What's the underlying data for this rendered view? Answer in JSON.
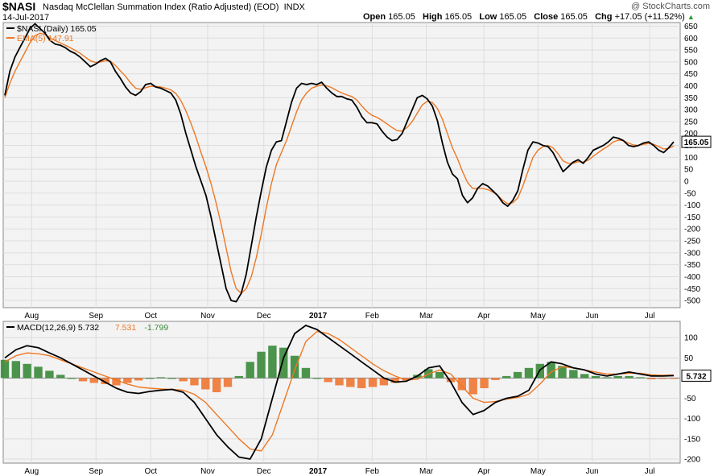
{
  "header": {
    "symbol": "$NASI",
    "description": "Nasdaq McClellan Summation Index (Ratio Adjusted) (EOD)",
    "exchange": "INDX",
    "date": "14-Jul-2017",
    "brand": "@ StockCharts.com",
    "ohlc": {
      "open_label": "Open",
      "open": "165.05",
      "high_label": "High",
      "high": "165.05",
      "low_label": "Low",
      "low": "165.05",
      "close_label": "Close",
      "close": "165.05",
      "chg_label": "Chg",
      "chg": "+17.05 (+11.52%)"
    }
  },
  "colors": {
    "price": "#000000",
    "ema": "#ee7722",
    "price_red": "#dd0000",
    "hist_pos": "#3a8a3a",
    "hist_neg": "#ee7733",
    "grid": "#dddddd",
    "panel_bg": "#f3f3f3"
  },
  "chart_data": [
    {
      "type": "line",
      "legend": [
        {
          "name": "$NASI (Daily) 165.05",
          "color": "#000000"
        },
        {
          "name": "EMA(5) 147.91",
          "color": "#ee7722"
        }
      ],
      "last_value_label": "165.05",
      "ylim": [
        -530,
        665
      ],
      "yticks": [
        650,
        600,
        550,
        500,
        450,
        400,
        350,
        300,
        250,
        200,
        150,
        100,
        50,
        0,
        -50,
        -100,
        -150,
        -200,
        -250,
        -300,
        -350,
        -400,
        -450,
        -500
      ],
      "xticks": [
        "Aug",
        "Sep",
        "Oct",
        "Nov",
        "Dec",
        "2017",
        "Feb",
        "Mar",
        "Apr",
        "May",
        "Jun",
        "Jul"
      ],
      "series": [
        {
          "name": "$NASI",
          "values": [
            360,
            460,
            520,
            560,
            600,
            640,
            660,
            640,
            620,
            590,
            575,
            570,
            560,
            545,
            535,
            520,
            500,
            480,
            490,
            505,
            515,
            500,
            460,
            430,
            395,
            370,
            360,
            375,
            405,
            410,
            395,
            390,
            380,
            370,
            340,
            280,
            200,
            130,
            60,
            0,
            -60,
            -150,
            -250,
            -350,
            -450,
            -500,
            -505,
            -470,
            -390,
            -270,
            -150,
            -40,
            60,
            130,
            165,
            170,
            250,
            330,
            390,
            410,
            405,
            410,
            405,
            415,
            390,
            370,
            355,
            355,
            345,
            340,
            310,
            270,
            245,
            245,
            240,
            210,
            185,
            170,
            175,
            200,
            250,
            300,
            350,
            360,
            345,
            315,
            255,
            160,
            80,
            30,
            10,
            -60,
            -90,
            -70,
            -30,
            -10,
            -20,
            -40,
            -60,
            -90,
            -105,
            -80,
            -40,
            50,
            130,
            165,
            160,
            150,
            145,
            120,
            80,
            40,
            60,
            80,
            90,
            75,
            100,
            130,
            140,
            150,
            165,
            185,
            180,
            170,
            150,
            145,
            150,
            160,
            165,
            150,
            130,
            120,
            140,
            165
          ]
        },
        {
          "name": "EMA(5)",
          "values": [
            350,
            410,
            460,
            500,
            540,
            580,
            610,
            620,
            615,
            600,
            590,
            580,
            570,
            560,
            548,
            536,
            520,
            505,
            498,
            500,
            505,
            503,
            485,
            462,
            440,
            412,
            390,
            385,
            392,
            398,
            397,
            395,
            390,
            383,
            368,
            338,
            295,
            243,
            185,
            120,
            60,
            -10,
            -90,
            -180,
            -280,
            -380,
            -450,
            -470,
            -450,
            -400,
            -320,
            -220,
            -110,
            -10,
            70,
            120,
            170,
            230,
            290,
            340,
            370,
            390,
            398,
            403,
            400,
            392,
            380,
            370,
            362,
            355,
            340,
            315,
            292,
            276,
            268,
            255,
            240,
            225,
            212,
            210,
            225,
            250,
            285,
            320,
            335,
            330,
            305,
            260,
            200,
            140,
            95,
            40,
            -5,
            -30,
            -30,
            -30,
            -35,
            -45,
            -60,
            -80,
            -95,
            -90,
            -70,
            -20,
            40,
            100,
            130,
            145,
            150,
            140,
            115,
            85,
            75,
            75,
            82,
            80,
            88,
            105,
            120,
            135,
            148,
            165,
            172,
            170,
            160,
            152,
            150,
            155,
            158,
            155,
            145,
            135,
            138,
            148
          ]
        }
      ]
    },
    {
      "type": "line",
      "legend": [
        {
          "name": "MACD(12,26,9)",
          "value": "5.732",
          "color": "#000000"
        },
        {
          "value": "7.531",
          "color": "#ee7722"
        },
        {
          "value": "-1.799",
          "color": "#3a8a3a"
        }
      ],
      "last_value_label": "5.732",
      "ylim": [
        -210,
        140
      ],
      "yticks": [
        100,
        50,
        0,
        -50,
        -100,
        -150,
        -200
      ],
      "xticks": [
        "Aug",
        "Sep",
        "Oct",
        "Nov",
        "Dec",
        "2017",
        "Feb",
        "Mar",
        "Apr",
        "May",
        "Jun",
        "Jul"
      ],
      "series": [
        {
          "name": "MACD",
          "values": [
            50,
            70,
            80,
            75,
            62,
            50,
            35,
            20,
            5,
            -10,
            -25,
            -35,
            -38,
            -33,
            -30,
            -28,
            -35,
            -60,
            -100,
            -140,
            -170,
            -195,
            -200,
            -150,
            -50,
            50,
            110,
            130,
            120,
            100,
            80,
            60,
            40,
            20,
            0,
            -10,
            -8,
            5,
            25,
            30,
            -10,
            -60,
            -90,
            -80,
            -60,
            -50,
            -45,
            -30,
            20,
            40,
            35,
            25,
            20,
            10,
            5,
            10,
            15,
            10,
            5,
            5,
            6
          ]
        },
        {
          "name": "Signal",
          "values": [
            40,
            55,
            62,
            60,
            55,
            45,
            35,
            25,
            15,
            5,
            -5,
            -15,
            -22,
            -25,
            -27,
            -28,
            -30,
            -40,
            -60,
            -90,
            -120,
            -150,
            -175,
            -180,
            -140,
            -60,
            20,
            90,
            115,
            110,
            95,
            75,
            55,
            35,
            18,
            5,
            -5,
            -3,
            10,
            20,
            10,
            -20,
            -50,
            -60,
            -58,
            -52,
            -48,
            -40,
            -15,
            15,
            28,
            25,
            20,
            15,
            10,
            10,
            12,
            12,
            8,
            7,
            7.5
          ]
        },
        {
          "name": "Histogram",
          "values": [
            45,
            42,
            35,
            28,
            18,
            8,
            0,
            -8,
            -12,
            -15,
            -18,
            -12,
            -6,
            0,
            2,
            0,
            -8,
            -18,
            -28,
            -35,
            -22,
            5,
            40,
            65,
            80,
            75,
            55,
            25,
            0,
            -10,
            -18,
            -22,
            -25,
            -22,
            -18,
            -12,
            -6,
            8,
            22,
            15,
            -10,
            -30,
            -40,
            -25,
            -5,
            5,
            15,
            25,
            35,
            40,
            30,
            20,
            10,
            5,
            2,
            5,
            5,
            2,
            -3,
            -2,
            -1.8
          ]
        }
      ]
    }
  ]
}
